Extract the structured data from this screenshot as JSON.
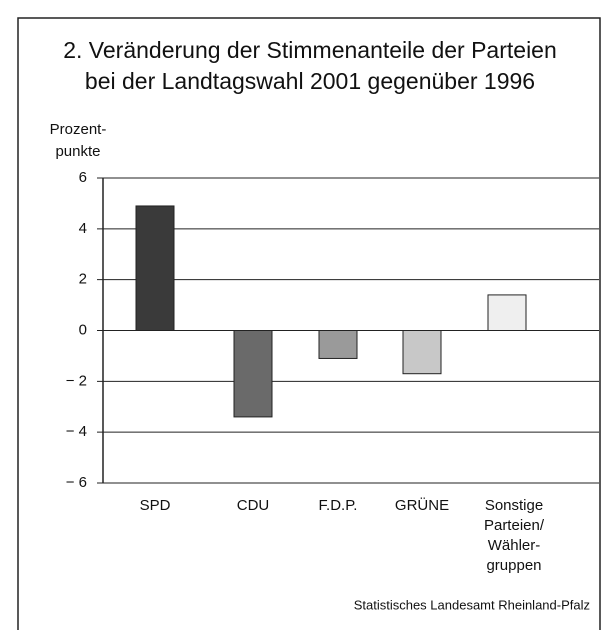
{
  "chart_data": {
    "type": "bar",
    "title": [
      "2. Veränderung der Stimmenanteile der Parteien",
      "bei der Landtagswahl 2001 gegenüber 1996"
    ],
    "y_label": [
      "Prozent-",
      "punkte"
    ],
    "categories": [
      [
        "SPD"
      ],
      [
        "CDU"
      ],
      [
        "F.D.P."
      ],
      [
        "GRÜNE"
      ],
      [
        "Sonstige",
        "Parteien/",
        "Wähler-",
        "gruppen"
      ]
    ],
    "values": [
      4.9,
      -3.4,
      -1.1,
      -1.7,
      1.4
    ],
    "colors": [
      "#3a3a3a",
      "#6a6a6a",
      "#9a9a9a",
      "#c8c8c8",
      "#efefef"
    ],
    "ylim": [
      -6,
      6
    ],
    "yticks": [
      {
        "value": -6,
        "label": "− 6"
      },
      {
        "value": -4,
        "label": "− 4"
      },
      {
        "value": -2,
        "label": "− 2"
      },
      0,
      2,
      4,
      6
    ],
    "grid": true,
    "source": "Statistisches Landesamt Rheinland-Pfalz"
  }
}
